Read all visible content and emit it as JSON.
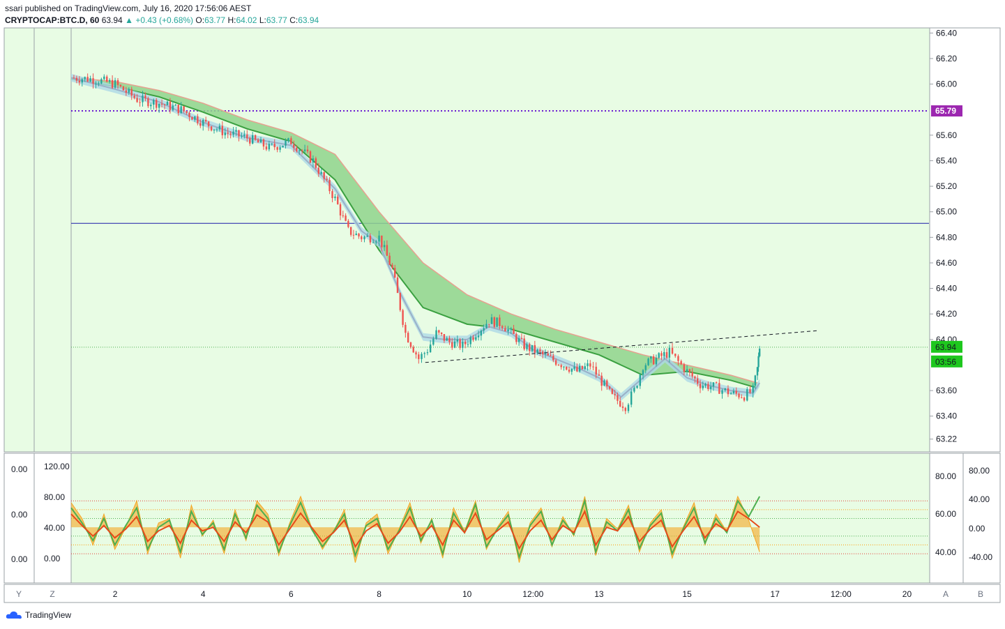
{
  "header": {
    "publisher": "ssari published on TradingView.com, July 16, 2020 17:56:06 AEST",
    "symbol": "CRYPTOCAP:BTC.D, 60",
    "last": "63.94",
    "change": "+0.43 (+0.68%)",
    "o_label": "O:",
    "o_value": "63.77",
    "h_label": "H:",
    "h_value": "64.02",
    "l_label": "L:",
    "l_value": "63.77",
    "c_label": "C:",
    "c_value": "63.94"
  },
  "footer": {
    "logo_text": "TradingView"
  },
  "colors": {
    "background": "#e8fce4",
    "up": "#26a69a",
    "down": "#ef5350",
    "ribbon_fill": "#8fd48c",
    "ribbon_upper": "#e8a090",
    "ribbon_lower": "#3aa040",
    "fast_band_fill": "#add8e6",
    "fast_band_line": "#9ab0c8",
    "hline_purple": "#6a1bd1",
    "hline_blue": "#1a1aa8",
    "osc_orange": "#f5a623",
    "osc_green": "#4caf50",
    "osc_red": "#e64a19"
  },
  "chart_data": [
    {
      "type": "line",
      "title": "CRYPTOCAP:BTC.D, 60",
      "ylim": [
        63.12,
        66.44
      ],
      "y_ticks": [
        "66.40",
        "66.20",
        "66.00",
        "65.60",
        "65.40",
        "65.20",
        "65.00",
        "64.80",
        "64.60",
        "64.40",
        "64.20",
        "64.00",
        "63.60",
        "63.40",
        "63.22"
      ],
      "x_ticks": [
        "2",
        "4",
        "6",
        "8",
        "10",
        "12:00",
        "13",
        "15",
        "17",
        "12:00",
        "20"
      ],
      "x_range_days": [
        1.0,
        20.5
      ],
      "close_path": [
        [
          1.0,
          66.05
        ],
        [
          1.5,
          66.04
        ],
        [
          2.0,
          66.0
        ],
        [
          2.5,
          65.88
        ],
        [
          3.0,
          65.85
        ],
        [
          3.5,
          65.8
        ],
        [
          4.0,
          65.7
        ],
        [
          4.5,
          65.62
        ],
        [
          5.0,
          65.58
        ],
        [
          5.5,
          65.5
        ],
        [
          6.0,
          65.55
        ],
        [
          6.5,
          65.4
        ],
        [
          7.0,
          65.1
        ],
        [
          7.3,
          64.85
        ],
        [
          7.6,
          64.8
        ],
        [
          8.0,
          64.8
        ],
        [
          8.3,
          64.55
        ],
        [
          8.6,
          64.05
        ],
        [
          8.9,
          63.85
        ],
        [
          9.1,
          63.92
        ],
        [
          9.3,
          64.05
        ],
        [
          9.6,
          63.98
        ],
        [
          9.9,
          63.95
        ],
        [
          10.2,
          64.05
        ],
        [
          10.5,
          64.15
        ],
        [
          10.8,
          64.12
        ],
        [
          11.0,
          64.05
        ],
        [
          11.3,
          63.95
        ],
        [
          11.6,
          63.9
        ],
        [
          11.9,
          63.85
        ],
        [
          12.2,
          63.8
        ],
        [
          12.5,
          63.75
        ],
        [
          12.8,
          63.8
        ],
        [
          13.0,
          63.7
        ],
        [
          13.3,
          63.55
        ],
        [
          13.6,
          63.48
        ],
        [
          13.8,
          63.6
        ],
        [
          14.0,
          63.8
        ],
        [
          14.3,
          63.85
        ],
        [
          14.6,
          63.9
        ],
        [
          15.0,
          63.75
        ],
        [
          15.3,
          63.65
        ],
        [
          15.6,
          63.63
        ],
        [
          16.0,
          63.58
        ],
        [
          16.3,
          63.56
        ],
        [
          16.5,
          63.6
        ],
        [
          16.6,
          63.77
        ],
        [
          16.65,
          63.94
        ]
      ],
      "ma_ribbon_upper": [
        [
          1.0,
          66.05
        ],
        [
          2.0,
          66.02
        ],
        [
          3.0,
          65.95
        ],
        [
          4.0,
          65.85
        ],
        [
          5.0,
          65.72
        ],
        [
          6.0,
          65.62
        ],
        [
          7.0,
          65.45
        ],
        [
          8.0,
          65.0
        ],
        [
          9.0,
          64.6
        ],
        [
          10.0,
          64.35
        ],
        [
          11.0,
          64.2
        ],
        [
          12.0,
          64.08
        ],
        [
          13.0,
          63.98
        ],
        [
          14.0,
          63.88
        ],
        [
          15.0,
          63.8
        ],
        [
          16.0,
          63.72
        ],
        [
          16.6,
          63.66
        ]
      ],
      "ma_ribbon_lower": [
        [
          1.0,
          66.04
        ],
        [
          2.0,
          65.98
        ],
        [
          3.0,
          65.9
        ],
        [
          4.0,
          65.78
        ],
        [
          5.0,
          65.65
        ],
        [
          6.0,
          65.55
        ],
        [
          7.0,
          65.25
        ],
        [
          8.0,
          64.7
        ],
        [
          9.0,
          64.25
        ],
        [
          10.0,
          64.12
        ],
        [
          11.0,
          64.08
        ],
        [
          12.0,
          63.98
        ],
        [
          13.0,
          63.88
        ],
        [
          14.0,
          63.72
        ],
        [
          15.0,
          63.75
        ],
        [
          16.0,
          63.68
        ],
        [
          16.6,
          63.62
        ]
      ],
      "fast_ma": [
        [
          1.0,
          66.05
        ],
        [
          2.0,
          65.96
        ],
        [
          3.0,
          65.86
        ],
        [
          4.0,
          65.7
        ],
        [
          5.0,
          65.58
        ],
        [
          6.0,
          65.52
        ],
        [
          7.0,
          65.18
        ],
        [
          7.6,
          64.85
        ],
        [
          8.0,
          64.75
        ],
        [
          8.5,
          64.35
        ],
        [
          9.0,
          64.02
        ],
        [
          9.5,
          64.0
        ],
        [
          10.0,
          64.0
        ],
        [
          10.5,
          64.1
        ],
        [
          11.0,
          64.05
        ],
        [
          11.5,
          63.92
        ],
        [
          12.0,
          63.85
        ],
        [
          12.5,
          63.78
        ],
        [
          13.0,
          63.7
        ],
        [
          13.5,
          63.55
        ],
        [
          14.0,
          63.7
        ],
        [
          14.5,
          63.85
        ],
        [
          15.0,
          63.7
        ],
        [
          15.5,
          63.64
        ],
        [
          16.0,
          63.6
        ],
        [
          16.5,
          63.58
        ],
        [
          16.65,
          63.66
        ]
      ],
      "trendline": [
        [
          9.05,
          63.82
        ],
        [
          18.0,
          64.07
        ]
      ],
      "hlines": [
        65.79,
        64.91
      ],
      "last_value": "63.94",
      "countdown": "03:56",
      "level_label": "65.79"
    },
    {
      "type": "line",
      "title": "",
      "left_ticks_1": [
        "0.00",
        "0.00",
        "0.00"
      ],
      "left_ticks_2": [
        "120.00",
        "80.00",
        "40.00",
        "0.00"
      ],
      "right_ticks_1": [
        "80.00",
        "60.00",
        "40.00"
      ],
      "right_ticks_2": [
        "80.00",
        "40.00",
        "0.00",
        "-40.00"
      ],
      "ylim": [
        -10,
        130
      ],
      "hlines": [
        80,
        70,
        60,
        40,
        30,
        20
      ],
      "series": [
        {
          "values": [
            78,
            60,
            30,
            65,
            25,
            50,
            80,
            20,
            55,
            60,
            15,
            75,
            40,
            58,
            20,
            70,
            35,
            80,
            65,
            18,
            55,
            85,
            50,
            25,
            45,
            70,
            10,
            55,
            65,
            20,
            48,
            78,
            32,
            60,
            15,
            72,
            45,
            80,
            25,
            50,
            68,
            10,
            55,
            72,
            28,
            62,
            40,
            85,
            18,
            60,
            48,
            75,
            22,
            55,
            70,
            15,
            50,
            78,
            30,
            65,
            45,
            85,
            58,
            22
          ]
        },
        {
          "values": [
            72,
            55,
            35,
            60,
            30,
            52,
            72,
            25,
            50,
            58,
            22,
            68,
            42,
            55,
            25,
            65,
            38,
            75,
            60,
            22,
            52,
            78,
            48,
            28,
            45,
            65,
            18,
            52,
            60,
            25,
            46,
            72,
            35,
            58,
            20,
            66,
            44,
            76,
            28,
            48,
            64,
            16,
            52,
            68,
            30,
            58,
            42,
            80,
            22,
            56,
            46,
            70,
            26,
            52,
            66,
            20,
            48,
            72,
            32,
            60,
            44,
            80,
            62,
            85
          ]
        },
        {
          "values": [
            65,
            52,
            40,
            52,
            38,
            48,
            62,
            34,
            46,
            52,
            32,
            58,
            46,
            50,
            34,
            56,
            44,
            64,
            56,
            30,
            48,
            66,
            50,
            34,
            44,
            58,
            28,
            46,
            54,
            32,
            44,
            62,
            40,
            52,
            30,
            58,
            44,
            66,
            36,
            46,
            56,
            26,
            46,
            58,
            36,
            52,
            44,
            68,
            30,
            50,
            46,
            62,
            34,
            48,
            58,
            28,
            46,
            62,
            38,
            54,
            46,
            68,
            60,
            50
          ]
        }
      ]
    }
  ],
  "bottom_bar": {
    "y_btn": "Y",
    "z_btn": "Z",
    "a_btn": "A",
    "b_btn": "B"
  }
}
